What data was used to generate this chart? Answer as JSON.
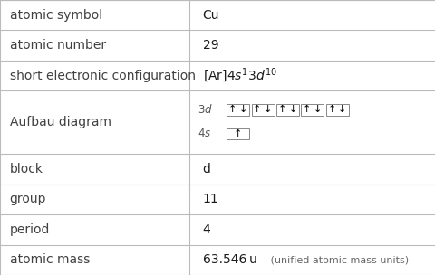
{
  "rows": [
    {
      "label": "atomic symbol",
      "value": "Cu",
      "type": "text"
    },
    {
      "label": "atomic number",
      "value": "29",
      "type": "text"
    },
    {
      "label": "short electronic configuration",
      "value": "",
      "type": "config"
    },
    {
      "label": "Aufbau diagram",
      "value": "",
      "type": "aufbau"
    },
    {
      "label": "block",
      "value": "d",
      "type": "text"
    },
    {
      "label": "group",
      "value": "11",
      "type": "text"
    },
    {
      "label": "period",
      "value": "4",
      "type": "text"
    },
    {
      "label": "atomic mass",
      "value": "",
      "type": "mass"
    }
  ],
  "col_split": 0.435,
  "bg_color": "#ffffff",
  "border_color": "#bbbbbb",
  "label_color": "#404040",
  "value_color": "#1a1a1a",
  "row_heights": [
    1,
    1,
    1,
    2.1,
    1,
    1,
    1,
    1
  ],
  "font_size": 10,
  "label_font_size": 10
}
